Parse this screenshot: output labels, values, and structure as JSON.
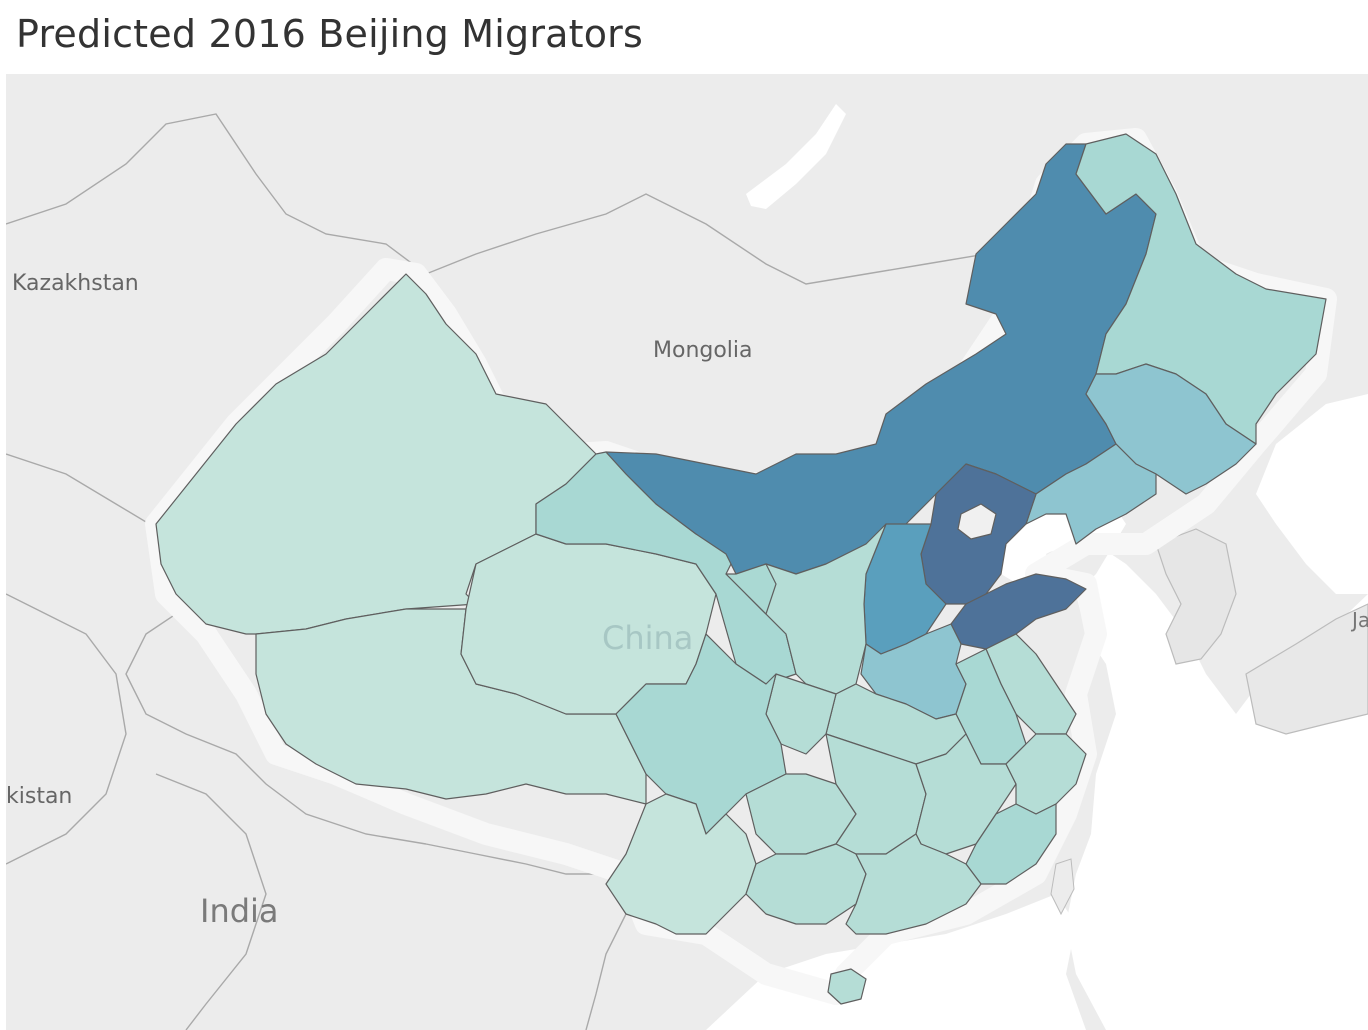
{
  "title": "Predicted 2016 Beijing Migrators",
  "map_labels": {
    "kazakhstan": "Kazakhstan",
    "mongolia": "Mongolia",
    "china": "China",
    "india": "India",
    "pakistan_partial": "kistan",
    "japan_partial": "Ja"
  },
  "colors": {
    "land": "#e8e8e8",
    "water": "#ffffff",
    "border": "#a9a9a9",
    "lowest": "#c5e4dc",
    "low": "#b5ddd6",
    "mid_low": "#a8d8d3",
    "mid": "#8ec5d0",
    "mid_high": "#5a9fbd",
    "high": "#4f8cae",
    "highest": "#4e7299",
    "beijing": "#f0f0f0"
  },
  "regions": [
    {
      "name": "Xinjiang",
      "level": "lowest"
    },
    {
      "name": "Tibet",
      "level": "lowest"
    },
    {
      "name": "Qinghai",
      "level": "lowest"
    },
    {
      "name": "Gansu",
      "level": "mid_low"
    },
    {
      "name": "Inner Mongolia",
      "level": "high"
    },
    {
      "name": "Heilongjiang",
      "level": "mid_low"
    },
    {
      "name": "Jilin",
      "level": "mid"
    },
    {
      "name": "Liaoning",
      "level": "mid"
    },
    {
      "name": "Hebei",
      "level": "highest"
    },
    {
      "name": "Shandong",
      "level": "highest"
    },
    {
      "name": "Shanxi",
      "level": "mid_high"
    },
    {
      "name": "Henan",
      "level": "mid"
    },
    {
      "name": "Sichuan",
      "level": "mid_low"
    },
    {
      "name": "Yunnan",
      "level": "lowest"
    },
    {
      "name": "Anhui",
      "level": "mid_low"
    },
    {
      "name": "Jiangsu",
      "level": "low"
    },
    {
      "name": "Fujian",
      "level": "mid_low"
    },
    {
      "name": "Guangdong",
      "level": "low"
    },
    {
      "name": "Hainan",
      "level": "low"
    },
    {
      "name": "Beijing",
      "level": "beijing"
    }
  ]
}
